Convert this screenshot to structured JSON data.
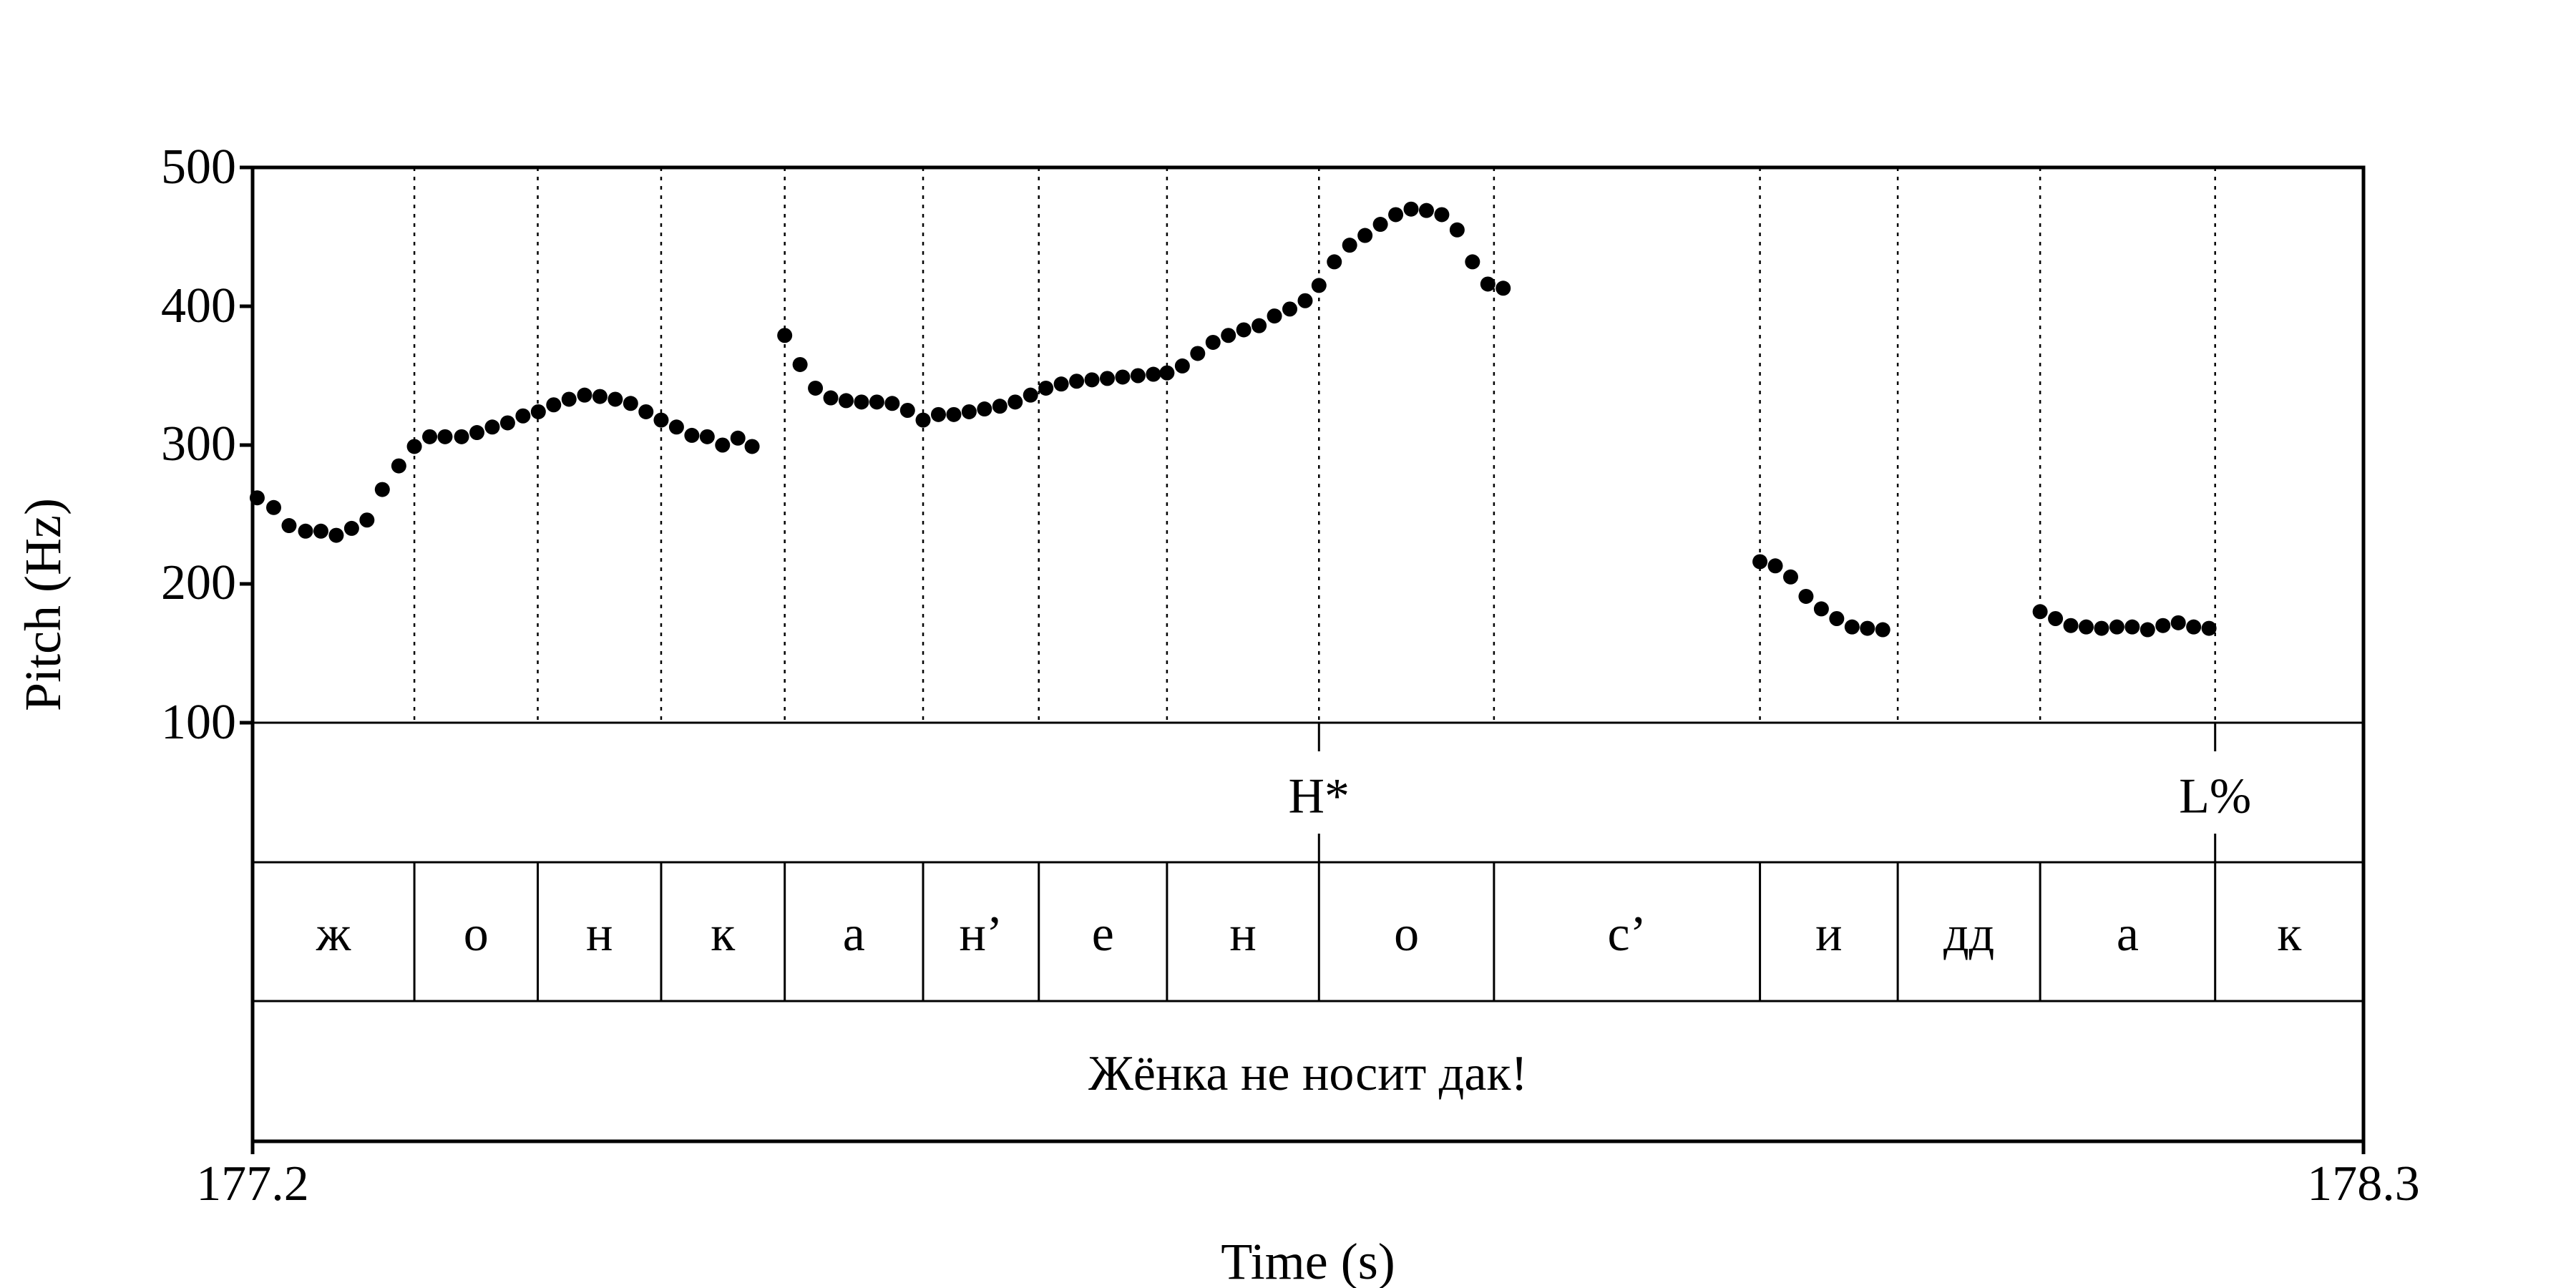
{
  "chart_data": {
    "type": "scatter",
    "xlabel": "Time (s)",
    "ylabel": "Pitch (Hz)",
    "xlim": [
      177.2,
      178.3
    ],
    "ylim": [
      100,
      500
    ],
    "x_tick_labels": [
      "177.2",
      "178.3"
    ],
    "y_ticks": [
      100,
      200,
      300,
      400,
      500
    ],
    "y_tick_labels": [
      "100",
      "200",
      "300",
      "400",
      "500"
    ],
    "grid": false,
    "tiers": {
      "tones": [
        {
          "time": 177.7557,
          "label": "H*"
        },
        {
          "time": 178.2227,
          "label": "L%"
        }
      ],
      "segment_boundaries": [
        177.2843,
        177.3486,
        177.4129,
        177.4773,
        177.5494,
        177.6097,
        177.6765,
        177.7557,
        177.8469,
        177.9855,
        178.0573,
        178.1315,
        178.2227
      ],
      "segments": [
        "ж",
        "о",
        "н",
        "к",
        "а",
        "н’",
        "е",
        "н",
        "о",
        "с’",
        "и",
        "дд",
        "а",
        "к"
      ],
      "sentence": "Жёнка не носит дак!"
    },
    "series": [
      {
        "points": [
          [
            177.2024,
            262
          ],
          [
            177.211,
            255
          ],
          [
            177.219,
            242
          ],
          [
            177.2276,
            238
          ],
          [
            177.2356,
            238
          ],
          [
            177.2436,
            235
          ],
          [
            177.2516,
            240
          ],
          [
            177.2596,
            246
          ],
          [
            177.2676,
            268
          ],
          [
            177.2762,
            285
          ],
          [
            177.2843,
            299
          ],
          [
            177.2923,
            306
          ],
          [
            177.3003,
            306
          ],
          [
            177.3089,
            306
          ],
          [
            177.3169,
            309
          ],
          [
            177.3249,
            313
          ],
          [
            177.3329,
            316
          ],
          [
            177.3409,
            321
          ],
          [
            177.3489,
            324
          ],
          [
            177.3569,
            329
          ],
          [
            177.3649,
            333
          ],
          [
            177.373,
            336
          ],
          [
            177.381,
            335
          ],
          [
            177.389,
            333
          ],
          [
            177.397,
            330
          ],
          [
            177.405,
            324
          ],
          [
            177.4129,
            318
          ],
          [
            177.4209,
            313
          ],
          [
            177.4289,
            307
          ],
          [
            177.4369,
            306
          ],
          [
            177.4449,
            300
          ],
          [
            177.4529,
            305
          ],
          [
            177.4603,
            299
          ],
          [
            177.4773,
            379
          ],
          [
            177.4853,
            358
          ],
          [
            177.4933,
            341
          ],
          [
            177.5013,
            334
          ],
          [
            177.5093,
            332
          ],
          [
            177.5173,
            331
          ],
          [
            177.5253,
            331
          ],
          [
            177.5333,
            330
          ],
          [
            177.5413,
            325
          ],
          [
            177.5494,
            318
          ],
          [
            177.5574,
            322
          ],
          [
            177.5654,
            322
          ],
          [
            177.5734,
            324
          ],
          [
            177.5814,
            326
          ],
          [
            177.5894,
            328
          ],
          [
            177.5974,
            331
          ],
          [
            177.6054,
            336
          ],
          [
            177.6134,
            341
          ],
          [
            177.6214,
            344
          ],
          [
            177.6294,
            346
          ],
          [
            177.6374,
            347
          ],
          [
            177.6454,
            348
          ],
          [
            177.6534,
            349
          ],
          [
            177.6614,
            350
          ],
          [
            177.6694,
            351
          ],
          [
            177.6765,
            352
          ],
          [
            177.6845,
            357
          ],
          [
            177.6925,
            366
          ],
          [
            177.7005,
            374
          ],
          [
            177.7085,
            379
          ],
          [
            177.7165,
            383
          ],
          [
            177.7245,
            386
          ],
          [
            177.7325,
            393
          ],
          [
            177.7405,
            398
          ],
          [
            177.7485,
            404
          ],
          [
            177.7557,
            415
          ],
          [
            177.7637,
            432
          ],
          [
            177.7717,
            444
          ],
          [
            177.7797,
            451
          ],
          [
            177.7877,
            459
          ],
          [
            177.7957,
            466
          ],
          [
            177.8037,
            470
          ],
          [
            177.8117,
            469
          ],
          [
            177.8197,
            466
          ],
          [
            177.8277,
            455
          ],
          [
            177.8357,
            432
          ],
          [
            177.8437,
            416
          ],
          [
            177.8517,
            413
          ],
          [
            177.9855,
            216
          ],
          [
            177.9935,
            213
          ],
          [
            178.0015,
            205
          ],
          [
            178.0095,
            191
          ],
          [
            178.0175,
            182
          ],
          [
            178.0255,
            175
          ],
          [
            178.0335,
            169
          ],
          [
            178.0415,
            168
          ],
          [
            178.0495,
            167
          ],
          [
            178.1315,
            180
          ],
          [
            178.1395,
            175
          ],
          [
            178.1475,
            170
          ],
          [
            178.1555,
            169
          ],
          [
            178.1635,
            168
          ],
          [
            178.1715,
            169
          ],
          [
            178.1795,
            169
          ],
          [
            178.1875,
            167
          ],
          [
            178.1955,
            170
          ],
          [
            178.2035,
            172
          ],
          [
            178.2115,
            169
          ],
          [
            178.2195,
            168
          ]
        ]
      }
    ]
  }
}
